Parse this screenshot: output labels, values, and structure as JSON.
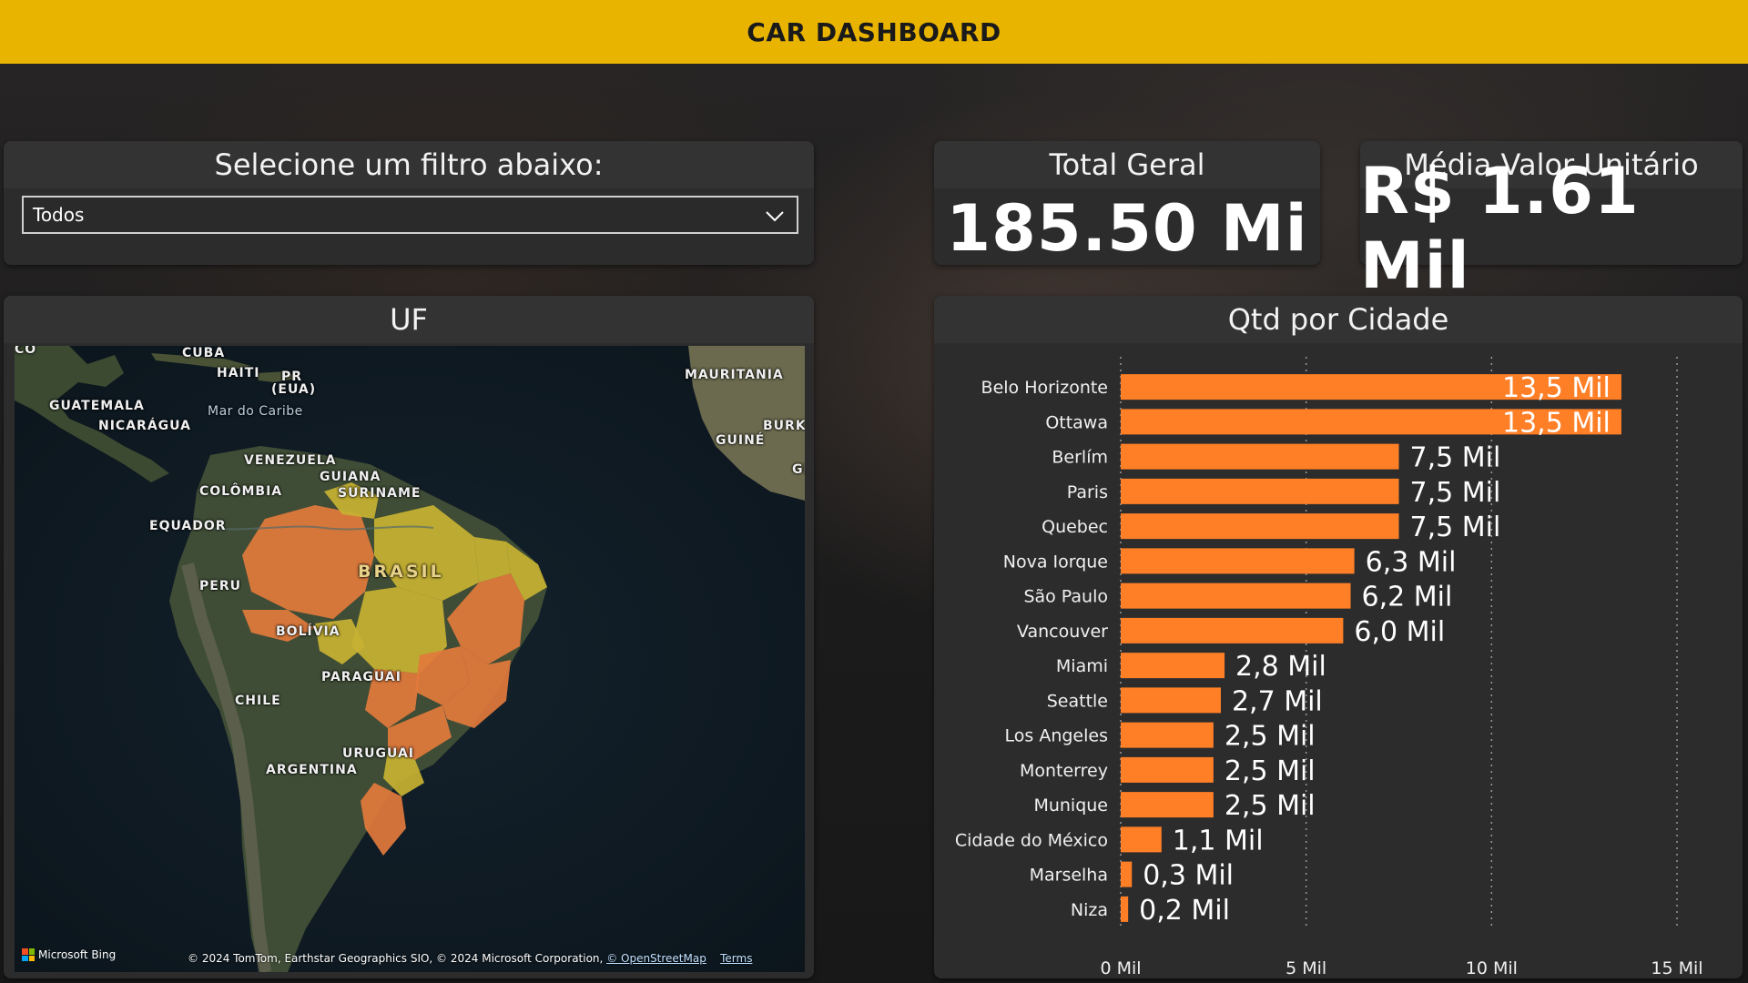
{
  "header": {
    "title": "CAR DASHBOARD"
  },
  "filter": {
    "title": "Selecione um filtro abaixo:",
    "selected": "Todos",
    "icon": "chevron-down-icon"
  },
  "kpis": {
    "total": {
      "label": "Total Geral",
      "value": "185.50 Mi"
    },
    "media": {
      "label": "Média Valor Unitário",
      "value": "R$ 1.61 Mil"
    }
  },
  "map": {
    "title": "UF",
    "labels": {
      "cuba": "CUBA",
      "haiti": "HAITI",
      "pr": "PR",
      "eua": "(EUA)",
      "guatemala": "GUATEMALA",
      "nicaragua": "NICARÁGUA",
      "caribe": "Mar do Caribe",
      "mauritania": "MAURITANIA",
      "burki": "BURKI",
      "guine": "GUINÉ",
      "venezuela": "VENEZUELA",
      "guiana": "GUIANA",
      "suriname": "SURINAME",
      "colombia": "COLÔMBIA",
      "equador": "EQUADOR",
      "brasil": "BRASIL",
      "peru": "PERU",
      "bolivia": "BOLÍVIA",
      "paraguai": "PARAGUAI",
      "chile": "CHILE",
      "uruguai": "URUGUAI",
      "argentina": "ARGENTINA",
      "co": "CO",
      "gl": "GI"
    },
    "bing_label": "Microsoft Bing",
    "attribution_text": "© 2024 TomTom, Earthstar Geographics SIO, © 2024 Microsoft Corporation,",
    "attribution_osm": "© OpenStreetMap",
    "attribution_terms": "Terms",
    "colors": {
      "high": "#e2793c",
      "low": "#c8b232",
      "ocean": "#0f1a22"
    }
  },
  "chart": {
    "title": "Qtd por Cidade",
    "bar_color": "#ff7f27"
  },
  "chart_data": {
    "type": "bar",
    "orientation": "horizontal",
    "title": "Qtd por Cidade",
    "categories": [
      "Belo Horizonte",
      "Ottawa",
      "Berlím",
      "Paris",
      "Quebec",
      "Nova Iorque",
      "São Paulo",
      "Vancouver",
      "Miami",
      "Seattle",
      "Los Angeles",
      "Monterrey",
      "Munique",
      "Cidade do México",
      "Marselha",
      "Niza"
    ],
    "values": [
      13.5,
      13.5,
      7.5,
      7.5,
      7.5,
      6.3,
      6.2,
      6.0,
      2.8,
      2.7,
      2.5,
      2.5,
      2.5,
      1.1,
      0.3,
      0.2
    ],
    "value_labels": [
      "13,5 Mil",
      "13,5 Mil",
      "7,5 Mil",
      "7,5 Mil",
      "7,5 Mil",
      "6,3 Mil",
      "6,2 Mil",
      "6,0 Mil",
      "2,8 Mil",
      "2,7 Mil",
      "2,5 Mil",
      "2,5 Mil",
      "2,5 Mil",
      "1,1 Mil",
      "0,3 Mil",
      "0,2 Mil"
    ],
    "xlim": [
      0,
      15
    ],
    "ticks": [
      0,
      5,
      10,
      15
    ],
    "tick_labels": [
      "0 Mil",
      "5 Mil",
      "10 Mil",
      "15 Mil"
    ],
    "grid": true
  }
}
